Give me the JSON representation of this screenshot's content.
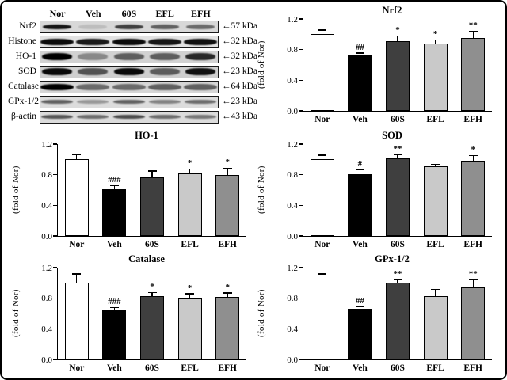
{
  "blot": {
    "lane_headers": [
      "Nor",
      "Veh",
      "60S",
      "EFL",
      "EFH"
    ],
    "rows": [
      {
        "label": "Nrf2",
        "kda": "←57 kDa",
        "bg": "#d8d8d8",
        "band_height": 6,
        "band_width": 36,
        "bands": [
          0.9,
          0.12,
          0.7,
          0.55,
          0.5
        ]
      },
      {
        "label": "Histone",
        "kda": "←32 kDa",
        "bg": "#e2e2e2",
        "band_height": 8,
        "band_width": 42,
        "bands": [
          0.95,
          0.88,
          0.95,
          0.9,
          0.92
        ]
      },
      {
        "label": "HO-1",
        "kda": "←32 kDa",
        "bg": "#d2d2d2",
        "band_height": 9,
        "band_width": 38,
        "bands": [
          1.0,
          0.35,
          0.55,
          0.55,
          0.8
        ]
      },
      {
        "label": "SOD",
        "kda": "←23 kDa",
        "bg": "#cfcfcf",
        "band_height": 9,
        "band_width": 38,
        "bands": [
          0.95,
          0.6,
          0.95,
          0.55,
          0.92
        ]
      },
      {
        "label": "Catalase",
        "kda": "←64 kDa",
        "bg": "#d6d6d6",
        "band_height": 8,
        "band_width": 42,
        "bands": [
          1.0,
          0.5,
          0.5,
          0.55,
          0.55
        ]
      },
      {
        "label": "GPx-1/2",
        "kda": "←23 kDa",
        "bg": "#dcdcdc",
        "band_height": 5,
        "band_width": 40,
        "bands": [
          0.55,
          0.3,
          0.55,
          0.4,
          0.5
        ]
      },
      {
        "label": "β-actin",
        "kda": "←43 kDa",
        "bg": "#dcdcdc",
        "band_height": 5,
        "band_width": 40,
        "bands": [
          0.6,
          0.5,
          0.65,
          0.5,
          0.45
        ]
      }
    ]
  },
  "bar_colors": [
    "#ffffff",
    "#000000",
    "#3f3f3f",
    "#c9c9c9",
    "#8f8f8f"
  ],
  "chart_data": [
    {
      "type": "bar",
      "title": "Nrf2",
      "ylabel": "(fold of Nor)",
      "ylim": [
        0,
        1.2
      ],
      "yticks": [
        "0.0",
        "0.4",
        "0.8",
        "1.2"
      ],
      "categories": [
        "Nor",
        "Veh",
        "60S",
        "EFL",
        "EFH"
      ],
      "values": [
        1.0,
        0.72,
        0.91,
        0.88,
        0.95
      ],
      "errors": [
        0.05,
        0.03,
        0.06,
        0.04,
        0.08
      ],
      "sig": [
        "",
        "##",
        "*",
        "*",
        "**"
      ],
      "grid": false,
      "legend": false
    },
    {
      "type": "bar",
      "title": "HO-1",
      "ylabel": "(fold of Nor)",
      "ylim": [
        0,
        1.2
      ],
      "yticks": [
        "0.0",
        "0.4",
        "0.8",
        "1.2"
      ],
      "categories": [
        "Nor",
        "Veh",
        "60S",
        "EFL",
        "EFH"
      ],
      "values": [
        1.0,
        0.61,
        0.77,
        0.82,
        0.8
      ],
      "errors": [
        0.06,
        0.04,
        0.07,
        0.05,
        0.08
      ],
      "sig": [
        "",
        "###",
        "",
        "*",
        "*"
      ],
      "grid": false,
      "legend": false
    },
    {
      "type": "bar",
      "title": "SOD",
      "ylabel": "(fold of Nor)",
      "ylim": [
        0,
        1.2
      ],
      "yticks": [
        "0.0",
        "0.4",
        "0.8",
        "1.2"
      ],
      "categories": [
        "Nor",
        "Veh",
        "60S",
        "EFL",
        "EFH"
      ],
      "values": [
        1.0,
        0.81,
        1.01,
        0.91,
        0.97
      ],
      "errors": [
        0.05,
        0.05,
        0.05,
        0.02,
        0.07
      ],
      "sig": [
        "",
        "#",
        "**",
        "",
        "*"
      ],
      "grid": false,
      "legend": false
    },
    {
      "type": "bar",
      "title": "Catalase",
      "ylabel": "(fold of Nor)",
      "ylim": [
        0,
        1.2
      ],
      "yticks": [
        "0.0",
        "0.4",
        "0.8",
        "1.2"
      ],
      "categories": [
        "Nor",
        "Veh",
        "60S",
        "EFL",
        "EFH"
      ],
      "values": [
        1.0,
        0.64,
        0.83,
        0.8,
        0.82
      ],
      "errors": [
        0.11,
        0.03,
        0.04,
        0.05,
        0.04
      ],
      "sig": [
        "",
        "###",
        "*",
        "*",
        "*"
      ],
      "grid": false,
      "legend": false
    },
    {
      "type": "bar",
      "title": "GPx-1/2",
      "ylabel": "(fold of Nor)",
      "ylim": [
        0,
        1.2
      ],
      "yticks": [
        "0.0",
        "0.4",
        "0.8",
        "1.2"
      ],
      "categories": [
        "Nor",
        "Veh",
        "60S",
        "EFL",
        "EFH"
      ],
      "values": [
        1.0,
        0.66,
        1.0,
        0.83,
        0.94
      ],
      "errors": [
        0.11,
        0.02,
        0.03,
        0.08,
        0.09
      ],
      "sig": [
        "",
        "##",
        "**",
        "",
        "**"
      ],
      "grid": false,
      "legend": false
    }
  ]
}
